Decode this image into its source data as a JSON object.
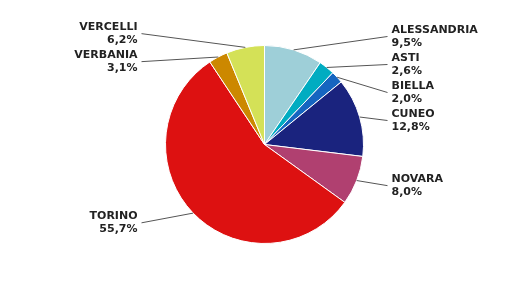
{
  "chart_data": {
    "type": "pie",
    "categories": [
      "ALESSANDRIA",
      "ASTI",
      "BIELLA",
      "CUNEO",
      "NOVARA",
      "TORINO",
      "VERBANIA",
      "VERCELLI"
    ],
    "values": [
      9.5,
      2.6,
      2.0,
      12.8,
      8.0,
      55.7,
      3.1,
      6.2
    ],
    "value_labels": [
      "9,5%",
      "2,6%",
      "2,0%",
      "12,8%",
      "8,0%",
      "55,7%",
      "3,1%",
      "6,2%"
    ],
    "colors": [
      "#9ecfd8",
      "#00acc1",
      "#1565c0",
      "#1a237e",
      "#b04070",
      "#dd1111",
      "#cc8800",
      "#d4e157"
    ],
    "data_labels": true
  }
}
